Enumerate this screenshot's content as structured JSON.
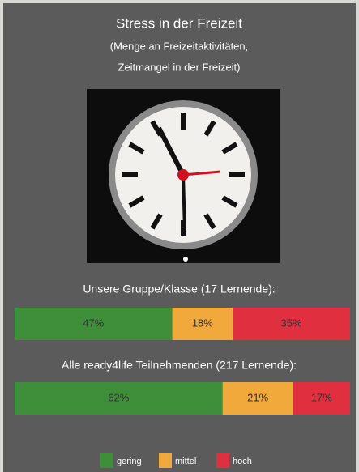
{
  "chart_data": {
    "type": "stacked_bar",
    "title": "Stress in der Freizeit",
    "subtitle": [
      "(Menge an Freizeitaktivitäten,",
      "Zeitmangel in der Freizeit)"
    ],
    "categories": [
      "Unsere Gruppe/Klasse (17 Lernende):",
      "Alle ready4life Teilnehmenden (217 Lernende):"
    ],
    "series": [
      {
        "name": "gering",
        "color": "#3f8f3a",
        "values": [
          47,
          62
        ],
        "value_labels": [
          "47%",
          "62%"
        ]
      },
      {
        "name": "mittel",
        "color": "#f2a93b",
        "values": [
          18,
          21
        ],
        "value_labels": [
          "18%",
          "21%"
        ]
      },
      {
        "name": "hoch",
        "color": "#e0303f",
        "values": [
          35,
          17
        ],
        "value_labels": [
          "35%",
          "17%"
        ]
      }
    ]
  }
}
